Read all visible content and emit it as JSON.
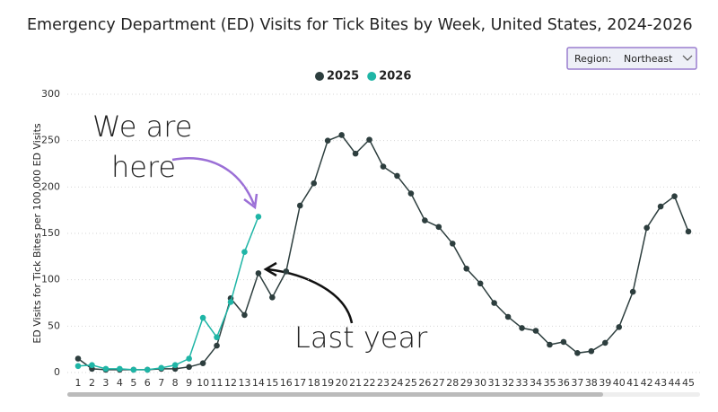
{
  "filter": {
    "label": "Region:",
    "value": "Northeast"
  },
  "chart_data": {
    "type": "line",
    "title": "Emergency Department (ED) Visits for Tick Bites by Week, United States, 2024-2026",
    "ylabel": "ED Visits for Tick Bites per 100,000 ED Visits",
    "annotations": [
      "We are",
      "here",
      "Last year"
    ],
    "categories": [
      "1",
      "2",
      "3",
      "4",
      "5",
      "6",
      "7",
      "8",
      "9",
      "10",
      "11",
      "12",
      "13",
      "14",
      "15",
      "16",
      "17",
      "18",
      "19",
      "20",
      "21",
      "22",
      "23",
      "24",
      "25",
      "26",
      "27",
      "28",
      "29",
      "30",
      "31",
      "32",
      "33",
      "34",
      "35",
      "36",
      "37",
      "38",
      "39",
      "40",
      "41",
      "42",
      "43",
      "44",
      "45"
    ],
    "series": [
      {
        "name": "2025",
        "color": "#2d3e3e",
        "values": [
          15,
          4,
          3,
          3,
          3,
          3,
          4,
          4,
          6,
          10,
          29,
          80,
          62,
          107,
          81,
          109,
          180,
          204,
          250,
          256,
          236,
          251,
          222,
          212,
          193,
          164,
          157,
          139,
          112,
          96,
          75,
          60,
          48,
          45,
          30,
          33,
          21,
          23,
          32,
          49,
          87,
          156,
          179,
          190,
          152
        ]
      },
      {
        "name": "2026",
        "color": "#1fb5a6",
        "values": [
          7,
          8,
          4,
          4,
          3,
          3,
          5,
          8,
          15,
          59,
          38,
          76,
          130,
          168,
          null,
          null,
          null,
          null,
          null,
          null,
          null,
          null,
          null,
          null,
          null,
          null,
          null,
          null,
          null,
          null,
          null,
          null,
          null,
          null,
          null,
          null,
          null,
          null,
          null,
          null,
          null,
          null,
          null,
          null,
          null
        ]
      }
    ],
    "ylim": [
      0,
      300
    ],
    "yticks": [
      0,
      50,
      100,
      150,
      200,
      250,
      300
    ],
    "grid": true,
    "legend": "top"
  }
}
